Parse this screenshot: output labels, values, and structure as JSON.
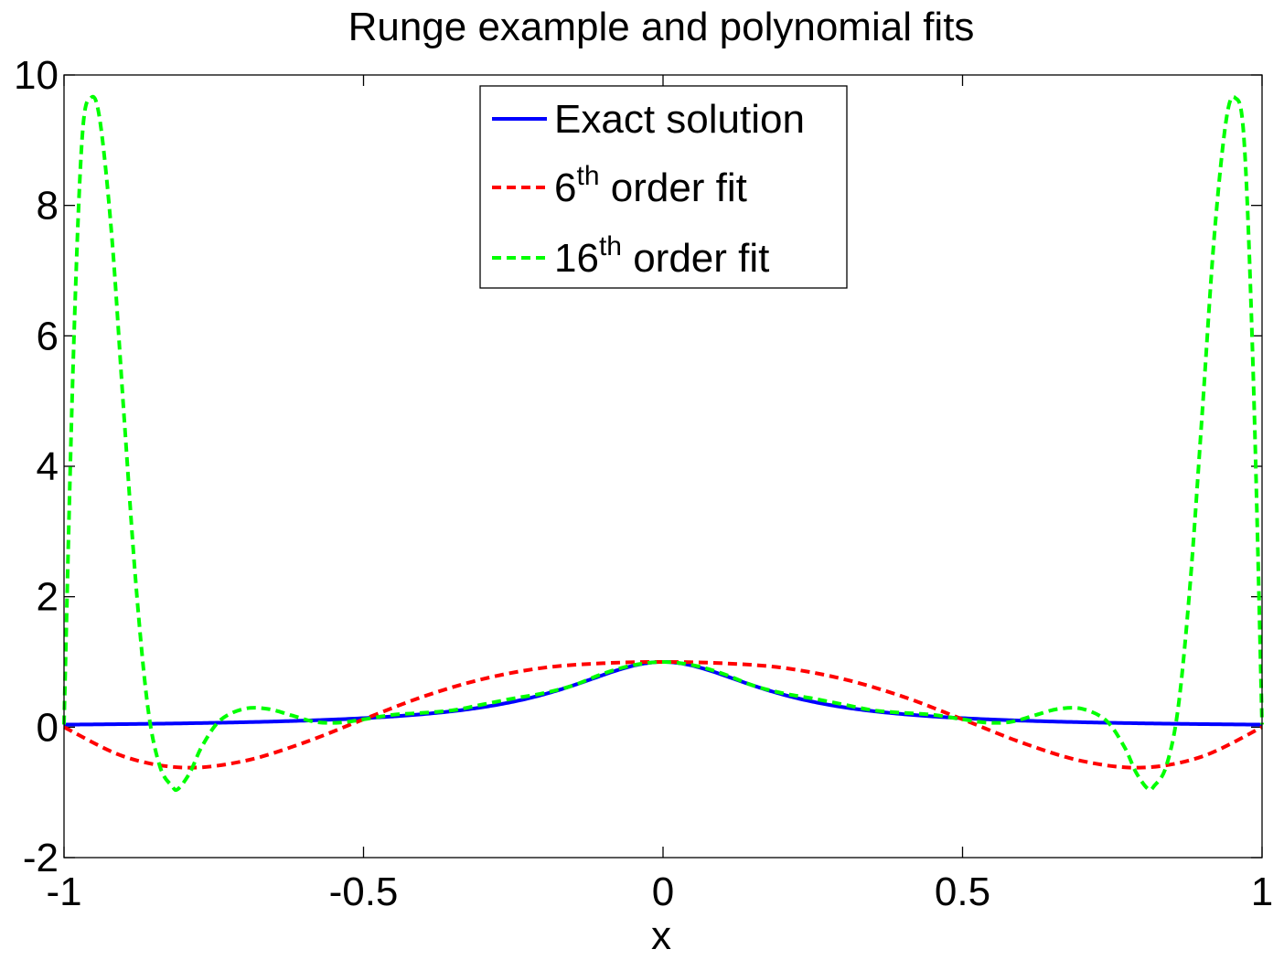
{
  "chart_data": {
    "type": "line",
    "title": "Runge example and polynomial fits",
    "xlabel": "x",
    "ylabel": "",
    "xlim": [
      -1,
      1
    ],
    "ylim": [
      -2,
      10
    ],
    "xticks": [
      "-1",
      "-0.5",
      "0",
      "0.5",
      "1"
    ],
    "yticks": [
      "-2",
      "0",
      "2",
      "4",
      "6",
      "8",
      "10"
    ],
    "grid": false,
    "legend_position": "top-center",
    "series": [
      {
        "name": "Exact solution",
        "name_base": "Exact solution",
        "name_sup": "",
        "name_suffix": "",
        "color": "#0000ff",
        "style": "solid",
        "function": "1/(1+25x^2)",
        "x": [
          -1,
          -0.8,
          -0.6,
          -0.5,
          -0.4,
          -0.3,
          -0.2,
          -0.1,
          0,
          0.1,
          0.2,
          0.3,
          0.4,
          0.5,
          0.6,
          0.8,
          1
        ],
        "values": [
          0.038,
          0.059,
          0.1,
          0.138,
          0.2,
          0.308,
          0.5,
          0.8,
          1.0,
          0.8,
          0.5,
          0.308,
          0.2,
          0.138,
          0.1,
          0.059,
          0.038
        ]
      },
      {
        "name": "6th order fit",
        "name_base": "6",
        "name_sup": "th",
        "name_suffix": " order fit",
        "color": "#ff0000",
        "style": "dashed",
        "x": [
          -1,
          -0.9,
          -0.8,
          -0.7,
          -0.6,
          -0.5,
          -0.4,
          -0.3,
          -0.2,
          -0.1,
          0,
          0.1,
          0.2,
          0.3,
          0.4,
          0.5,
          0.6,
          0.7,
          0.8,
          0.9,
          1
        ],
        "values": [
          0.0,
          -0.45,
          -0.62,
          -0.52,
          -0.24,
          0.12,
          0.47,
          0.74,
          0.91,
          0.98,
          1.0,
          0.98,
          0.91,
          0.74,
          0.47,
          0.12,
          -0.24,
          -0.52,
          -0.62,
          -0.45,
          0.0
        ]
      },
      {
        "name": "16th order fit",
        "name_base": "16",
        "name_sup": "th",
        "name_suffix": " order fit",
        "color": "#00ff00",
        "style": "dashed",
        "x": [
          -1,
          -0.985,
          -0.97,
          -0.955,
          -0.94,
          -0.92,
          -0.9,
          -0.88,
          -0.86,
          -0.84,
          -0.82,
          -0.81,
          -0.79,
          -0.77,
          -0.74,
          -0.7,
          -0.66,
          -0.62,
          -0.58,
          -0.54,
          -0.5,
          -0.45,
          -0.4,
          -0.35,
          -0.3,
          -0.25,
          -0.2,
          -0.15,
          -0.1,
          -0.05,
          0,
          0.05,
          0.1,
          0.15,
          0.2,
          0.25,
          0.3,
          0.35,
          0.4,
          0.45,
          0.5,
          0.54,
          0.58,
          0.62,
          0.66,
          0.7,
          0.74,
          0.77,
          0.79,
          0.81,
          0.82,
          0.84,
          0.86,
          0.88,
          0.9,
          0.92,
          0.94,
          0.955,
          0.97,
          0.985,
          1
        ],
        "values": [
          0.04,
          5.5,
          9.0,
          9.65,
          9.3,
          7.5,
          4.8,
          2.2,
          0.3,
          -0.6,
          -0.9,
          -0.95,
          -0.7,
          -0.3,
          0.1,
          0.28,
          0.28,
          0.18,
          0.08,
          0.07,
          0.12,
          0.19,
          0.22,
          0.26,
          0.35,
          0.44,
          0.52,
          0.64,
          0.82,
          0.95,
          1.0,
          0.95,
          0.82,
          0.64,
          0.52,
          0.44,
          0.35,
          0.26,
          0.22,
          0.19,
          0.12,
          0.07,
          0.08,
          0.18,
          0.28,
          0.28,
          0.1,
          -0.3,
          -0.7,
          -0.95,
          -0.9,
          -0.6,
          0.3,
          2.2,
          4.8,
          7.5,
          9.3,
          9.65,
          9.0,
          5.5,
          0.04
        ]
      }
    ]
  }
}
